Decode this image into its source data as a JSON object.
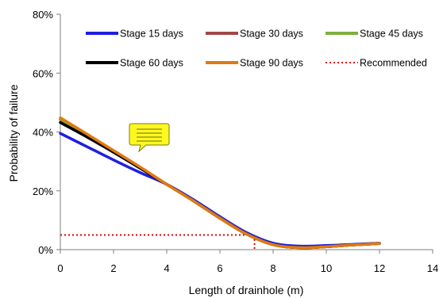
{
  "chart_data": {
    "type": "line",
    "xlabel": "Length of drainhole (m)",
    "ylabel": "Probability of failure",
    "xlim": [
      0,
      14
    ],
    "ylim": [
      0,
      0.8
    ],
    "x_ticks": [
      0,
      2,
      4,
      6,
      8,
      10,
      12,
      14
    ],
    "x_tick_labels": [
      "0",
      "2",
      "4",
      "6",
      "8",
      "10",
      "12",
      "14"
    ],
    "y_ticks": [
      0,
      0.2,
      0.4,
      0.6,
      0.8
    ],
    "y_tick_labels": [
      "0%",
      "20%",
      "40%",
      "60%",
      "80%"
    ],
    "grid": false,
    "legend_position": "top",
    "series": [
      {
        "name": "Stage 15 days",
        "color": "#1F1FE0",
        "x": [
          0,
          1,
          2,
          3,
          4,
          5,
          6,
          7,
          8,
          9,
          10,
          11,
          12
        ],
        "y": [
          0.395,
          0.35,
          0.305,
          0.262,
          0.222,
          0.17,
          0.112,
          0.058,
          0.022,
          0.012,
          0.014,
          0.018,
          0.022
        ]
      },
      {
        "name": "Stage 30 days",
        "color": "#A04848",
        "x": [
          0,
          1,
          2,
          3,
          4,
          5,
          6,
          7,
          8,
          9,
          10,
          11,
          12
        ],
        "y": [
          0.442,
          0.39,
          0.335,
          0.28,
          0.222,
          0.166,
          0.107,
          0.053,
          0.017,
          0.007,
          0.01,
          0.016,
          0.021
        ]
      },
      {
        "name": "Stage 45 days",
        "color": "#7FAE3F",
        "x": [
          0,
          1,
          2,
          3,
          4,
          5,
          6,
          7,
          8,
          9,
          10,
          11,
          12
        ],
        "y": [
          0.444,
          0.391,
          0.336,
          0.28,
          0.222,
          0.166,
          0.107,
          0.053,
          0.017,
          0.007,
          0.01,
          0.016,
          0.021
        ]
      },
      {
        "name": "Stage 60 days",
        "color": "#000000",
        "x": [
          0,
          1,
          2,
          3,
          4,
          5,
          6,
          7,
          8,
          9,
          10,
          11,
          12
        ],
        "y": [
          0.432,
          0.383,
          0.331,
          0.277,
          0.222,
          0.166,
          0.107,
          0.053,
          0.017,
          0.007,
          0.01,
          0.016,
          0.021
        ]
      },
      {
        "name": "Stage 90 days",
        "color": "#E07A10",
        "x": [
          0,
          1,
          2,
          3,
          4,
          5,
          6,
          7,
          8,
          9,
          10,
          11,
          12
        ],
        "y": [
          0.448,
          0.393,
          0.337,
          0.281,
          0.222,
          0.166,
          0.107,
          0.053,
          0.017,
          0.007,
          0.01,
          0.016,
          0.021
        ]
      }
    ],
    "recommended": {
      "name": "Recommended",
      "color": "#E00000",
      "x": 7.3,
      "y": 0.05
    },
    "annotation_icon": "speech-bubble-icon"
  }
}
